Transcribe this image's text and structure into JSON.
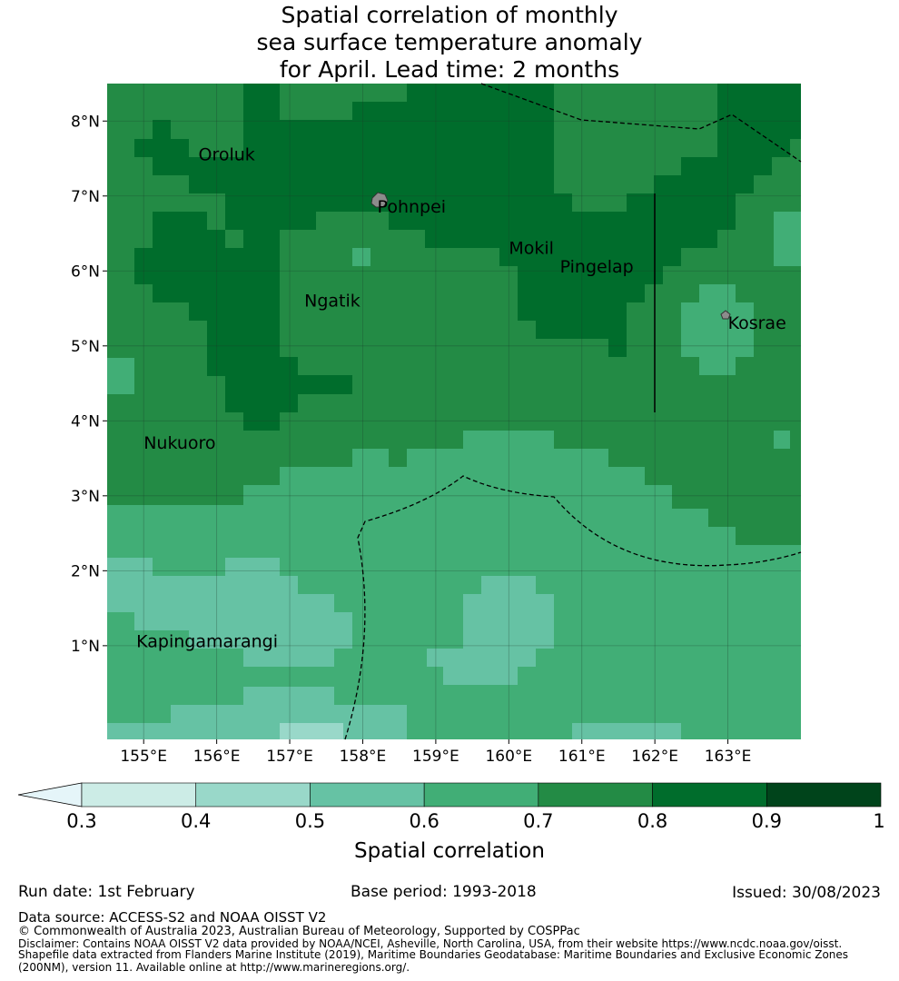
{
  "title": {
    "line1": "Spatial correlation of monthly",
    "line2": "sea surface temperature anomaly",
    "line3": "for April. Lead time: 2 months"
  },
  "map": {
    "lat_range": [
      -0.25,
      8.5
    ],
    "lon_range": [
      154.5,
      164.0
    ],
    "lat_ticks": [
      "1°N",
      "2°N",
      "3°N",
      "4°N",
      "5°N",
      "6°N",
      "7°N",
      "8°N"
    ],
    "lon_ticks": [
      "155°E",
      "156°E",
      "157°E",
      "158°E",
      "159°E",
      "160°E",
      "161°E",
      "162°E",
      "163°E"
    ],
    "islands": [
      {
        "name": "Oroluk",
        "lon": 155.75,
        "lat": 7.55
      },
      {
        "name": "Pohnpei",
        "lon": 158.2,
        "lat": 6.85
      },
      {
        "name": "Mokil",
        "lon": 160.0,
        "lat": 6.3
      },
      {
        "name": "Pingelap",
        "lon": 160.7,
        "lat": 6.05
      },
      {
        "name": "Ngatik",
        "lon": 157.2,
        "lat": 5.6
      },
      {
        "name": "Kosrae",
        "lon": 163.0,
        "lat": 5.3
      },
      {
        "name": "Nukuoro",
        "lon": 155.0,
        "lat": 3.7
      },
      {
        "name": "Kapingamarangi",
        "lon": 154.9,
        "lat": 1.05
      }
    ],
    "grid_lines": true
  },
  "colorbar": {
    "ticks": [
      "0.3",
      "0.4",
      "0.5",
      "0.6",
      "0.7",
      "0.8",
      "0.9",
      "1"
    ],
    "colors": [
      "#e5f5f9",
      "#ccece6",
      "#99d8c9",
      "#66c2a4",
      "#41ae76",
      "#238b45",
      "#006d2c",
      "#00441b"
    ],
    "label": "Spatial correlation"
  },
  "footer": {
    "run_date": "Run date: 1st February",
    "base_period": "Base period: 1993-2018",
    "issued": "Issued: 30/08/2023",
    "data_source": "Data source: ACCESS-S2 and NOAA OISST V2",
    "copyright": "© Commonwealth of Australia 2023, Australian Bureau of Meteorology, Supported by COSPPac",
    "disclaimer1": "Disclaimer: Contains NOAA OISST V2 data provided by NOAA/NCEI, Asheville, North Carolina, USA, from their website https://www.ncdc.noaa.gov/oisst.",
    "disclaimer2": "Shapefile data extracted from Flanders Marine Institute (2019), Maritime Boundaries Geodatabase: Maritime Boundaries and Exclusive Economic Zones",
    "disclaimer3": "(200NM), version 11. Available online at http://www.marineregions.org/."
  }
}
